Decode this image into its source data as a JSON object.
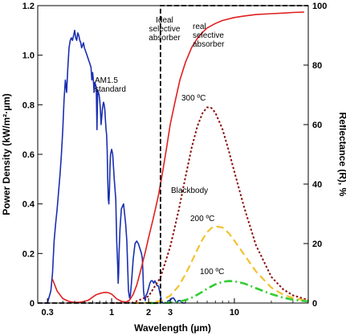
{
  "chart_data": {
    "type": "line",
    "xlabel": "Wavelength (µm)",
    "ylabel_left": "Power Density (kW/m²·µm)",
    "ylabel_right": "Reflectance (R), %",
    "x_scale": "log",
    "xlim": [
      0.25,
      40
    ],
    "ylim_left": [
      0,
      1.2
    ],
    "ylim_right": [
      0,
      100
    ],
    "x_ticks": [
      "0.3",
      "1",
      "2",
      "3",
      "10"
    ],
    "y_ticks_left": [
      "0",
      "0.2",
      "0.4",
      "0.6",
      "0.8",
      "1.0",
      "1.2"
    ],
    "y_ticks_right": [
      "0",
      "20",
      "40",
      "60",
      "80",
      "100"
    ],
    "cutoff_wavelength": 2.5,
    "annotations": {
      "ideal": "Ideal\nselective\nabsorber",
      "real": "real\nselective\nabsorber",
      "am15": "AM1.5\nstandard",
      "t300": "300 ºC",
      "blackbody": "Blackbody",
      "t200": "200 ºC",
      "t100": "100 ºC"
    },
    "series": [
      {
        "name": "AM1.5 standard",
        "axis": "left",
        "color": "#1a2fb0",
        "style": "solid",
        "x": [
          0.28,
          0.3,
          0.32,
          0.33,
          0.34,
          0.35,
          0.36,
          0.37,
          0.38,
          0.39,
          0.4,
          0.41,
          0.42,
          0.43,
          0.44,
          0.45,
          0.46,
          0.47,
          0.48,
          0.49,
          0.5,
          0.51,
          0.52,
          0.53,
          0.54,
          0.55,
          0.56,
          0.57,
          0.58,
          0.59,
          0.6,
          0.61,
          0.62,
          0.63,
          0.64,
          0.65,
          0.66,
          0.67,
          0.68,
          0.69,
          0.7,
          0.71,
          0.72,
          0.73,
          0.74,
          0.75,
          0.76,
          0.77,
          0.78,
          0.79,
          0.8,
          0.81,
          0.82,
          0.83,
          0.84,
          0.85,
          0.86,
          0.87,
          0.88,
          0.89,
          0.9,
          0.91,
          0.92,
          0.93,
          0.94,
          0.95,
          0.96,
          0.97,
          0.98,
          1.0,
          1.02,
          1.05,
          1.08,
          1.1,
          1.12,
          1.13,
          1.14,
          1.15,
          1.17,
          1.2,
          1.25,
          1.3,
          1.33,
          1.35,
          1.37,
          1.4,
          1.42,
          1.45,
          1.5,
          1.55,
          1.6,
          1.65,
          1.7,
          1.75,
          1.78,
          1.8,
          1.82,
          1.85,
          1.88,
          1.9,
          1.95,
          2.0,
          2.05,
          2.1,
          2.15,
          2.2,
          2.25,
          2.3,
          2.35,
          2.4,
          2.45,
          2.5,
          2.55,
          2.6,
          2.7,
          2.8,
          2.9,
          3.0,
          3.1,
          3.2,
          3.3,
          3.4,
          3.5,
          3.6,
          3.8,
          4.0
        ],
        "y": [
          0.0,
          0.0,
          0.05,
          0.12,
          0.25,
          0.32,
          0.38,
          0.45,
          0.52,
          0.6,
          0.7,
          0.82,
          0.9,
          0.85,
          0.95,
          1.03,
          1.06,
          1.07,
          1.06,
          1.08,
          1.1,
          1.07,
          1.06,
          1.09,
          1.08,
          1.06,
          1.05,
          1.03,
          1.04,
          1.05,
          1.03,
          1.02,
          1.01,
          1.0,
          0.99,
          0.98,
          0.97,
          0.96,
          0.95,
          0.9,
          0.93,
          0.9,
          0.85,
          0.89,
          0.88,
          0.87,
          0.7,
          0.86,
          0.85,
          0.84,
          0.82,
          0.78,
          0.72,
          0.75,
          0.78,
          0.8,
          0.81,
          0.8,
          0.78,
          0.74,
          0.7,
          0.68,
          0.62,
          0.5,
          0.42,
          0.4,
          0.45,
          0.55,
          0.6,
          0.62,
          0.6,
          0.5,
          0.42,
          0.25,
          0.15,
          0.08,
          0.12,
          0.2,
          0.3,
          0.38,
          0.4,
          0.32,
          0.25,
          0.15,
          0.05,
          0.02,
          0.03,
          0.08,
          0.18,
          0.24,
          0.25,
          0.24,
          0.22,
          0.2,
          0.18,
          0.12,
          0.05,
          0.02,
          0.01,
          0.03,
          0.04,
          0.06,
          0.08,
          0.09,
          0.09,
          0.08,
          0.09,
          0.08,
          0.07,
          0.07,
          0.05,
          0.03,
          0.01,
          0.0,
          0.0,
          0.0,
          0.01,
          0.01,
          0.02,
          0.02,
          0.01,
          0.0,
          0.01,
          0.01,
          0.0,
          0.0
        ]
      },
      {
        "name": "real selective absorber",
        "axis": "right",
        "color": "#e02020",
        "style": "solid",
        "x": [
          0.33,
          0.36,
          0.4,
          0.45,
          0.5,
          0.55,
          0.6,
          0.65,
          0.7,
          0.75,
          0.8,
          0.85,
          0.9,
          0.95,
          1.0,
          1.05,
          1.1,
          1.2,
          1.3,
          1.4,
          1.5,
          1.6,
          1.7,
          1.8,
          1.9,
          2.0,
          2.2,
          2.4,
          2.6,
          2.8,
          3.0,
          3.3,
          3.6,
          4.0,
          4.5,
          5.0,
          5.5,
          6.0,
          7.0,
          8.0,
          10.0,
          12.0,
          15.0,
          20.0,
          25.0,
          30.0,
          37.0
        ],
        "y": [
          8,
          4,
          1.5,
          0.5,
          0.2,
          0.3,
          0.5,
          1,
          2,
          2.8,
          3.2,
          3.5,
          3.6,
          3.4,
          3.0,
          2.2,
          1.4,
          0.6,
          0.3,
          1,
          3,
          6,
          10,
          14,
          18,
          22,
          29,
          36,
          44,
          52,
          60,
          68,
          75,
          81,
          86,
          89,
          91,
          92.5,
          94,
          95,
          96,
          96.5,
          97,
          97.3,
          97.5,
          97.7,
          97.8
        ]
      },
      {
        "name": "300 ºC",
        "axis": "right",
        "color": "#8b0a0a",
        "style": "dotted",
        "x": [
          1.0,
          1.5,
          2.0,
          2.5,
          3.0,
          3.5,
          4.0,
          4.5,
          5.0,
          5.5,
          6.0,
          6.5,
          7.0,
          8.0,
          9.0,
          10.0,
          12.0,
          15.0,
          20.0,
          25.0,
          30.0,
          40.0
        ],
        "y": [
          0.0,
          0.2,
          2.3,
          8.6,
          18.9,
          30.7,
          42.5,
          52.4,
          59.5,
          63.9,
          65.8,
          65.6,
          64.0,
          58.5,
          51.2,
          44.2,
          32.2,
          19.4,
          8.8,
          4.6,
          2.6,
          1.0
        ]
      },
      {
        "name": "200 ºC",
        "axis": "right",
        "color": "#f2c230",
        "style": "dashed",
        "x": [
          1.5,
          2.0,
          2.5,
          3.0,
          3.5,
          4.0,
          4.5,
          5.0,
          5.5,
          6.0,
          6.5,
          7.0,
          8.0,
          9.0,
          10.0,
          12.0,
          15.0,
          20.0,
          25.0,
          30.0,
          40.0
        ],
        "y": [
          0.0,
          0.1,
          0.7,
          2.5,
          5.6,
          9.7,
          14.0,
          18.0,
          21.4,
          23.8,
          25.2,
          25.8,
          25.4,
          23.5,
          21.0,
          16.3,
          10.6,
          5.2,
          2.8,
          1.7,
          0.7
        ]
      },
      {
        "name": "100 ºC",
        "axis": "right",
        "color": "#33cc33",
        "style": "dashdot",
        "x": [
          2.0,
          2.5,
          3.0,
          3.5,
          4.0,
          4.5,
          5.0,
          5.5,
          6.0,
          6.5,
          7.0,
          8.0,
          9.0,
          10.0,
          12.0,
          15.0,
          20.0,
          25.0,
          30.0,
          40.0
        ],
        "y": [
          0.0,
          0.0,
          0.1,
          0.4,
          1.0,
          1.8,
          2.8,
          3.8,
          4.8,
          5.6,
          6.3,
          7.1,
          7.4,
          7.3,
          6.6,
          5.0,
          3.0,
          1.8,
          1.1,
          0.5
        ]
      },
      {
        "name": "Ideal selective absorber",
        "axis": "right",
        "color": "#000000",
        "style": "dashed",
        "x": [
          0.25,
          2.5,
          2.5,
          40.0
        ],
        "y": [
          0,
          0,
          100,
          100
        ]
      }
    ]
  }
}
